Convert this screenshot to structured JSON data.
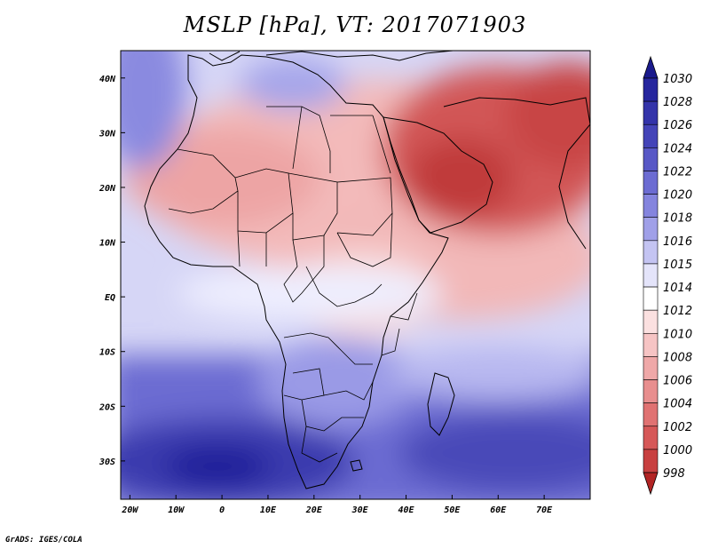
{
  "title": "MSLP [hPa], VT: 2017071903",
  "credit": "GrADS: IGES/COLA",
  "map": {
    "lon_range": [
      -22,
      80
    ],
    "lat_range": [
      -37,
      45
    ],
    "lon_ticks": [
      {
        "value": -20,
        "label": "20W"
      },
      {
        "value": -10,
        "label": "10W"
      },
      {
        "value": 0,
        "label": "0"
      },
      {
        "value": 10,
        "label": "10E"
      },
      {
        "value": 20,
        "label": "20E"
      },
      {
        "value": 30,
        "label": "30E"
      },
      {
        "value": 40,
        "label": "40E"
      },
      {
        "value": 50,
        "label": "50E"
      },
      {
        "value": 60,
        "label": "60E"
      },
      {
        "value": 70,
        "label": "70E"
      }
    ],
    "lat_ticks": [
      {
        "value": 40,
        "label": "40N"
      },
      {
        "value": 30,
        "label": "30N"
      },
      {
        "value": 20,
        "label": "20N"
      },
      {
        "value": 10,
        "label": "10N"
      },
      {
        "value": 0,
        "label": "EQ"
      },
      {
        "value": -10,
        "label": "10S"
      },
      {
        "value": -20,
        "label": "20S"
      },
      {
        "value": -30,
        "label": "30S"
      }
    ]
  },
  "colorbar": {
    "levels": [
      {
        "label": "1030",
        "color": "#1c1c96"
      },
      {
        "label": "1028",
        "color": "#26269e"
      },
      {
        "label": "1026",
        "color": "#3434aa"
      },
      {
        "label": "1024",
        "color": "#4444b8"
      },
      {
        "label": "1022",
        "color": "#5858c6"
      },
      {
        "label": "1020",
        "color": "#6c6cd2"
      },
      {
        "label": "1018",
        "color": "#8484de"
      },
      {
        "label": "1016",
        "color": "#a0a0e8"
      },
      {
        "label": "1015",
        "color": "#c4c4f2"
      },
      {
        "label": "1014",
        "color": "#e4e4fa"
      },
      {
        "label": "1012",
        "color": "#ffffff"
      },
      {
        "label": "1010",
        "color": "#fbe0e0"
      },
      {
        "label": "1008",
        "color": "#f6c4c4"
      },
      {
        "label": "1006",
        "color": "#efa8a8"
      },
      {
        "label": "1004",
        "color": "#e88e8e"
      },
      {
        "label": "1002",
        "color": "#e07272"
      },
      {
        "label": "1000",
        "color": "#d65858"
      },
      {
        "label": "998",
        "color": "#c84040"
      }
    ],
    "upper_color": "#1a1a8c",
    "lower_color": "#b22424"
  }
}
